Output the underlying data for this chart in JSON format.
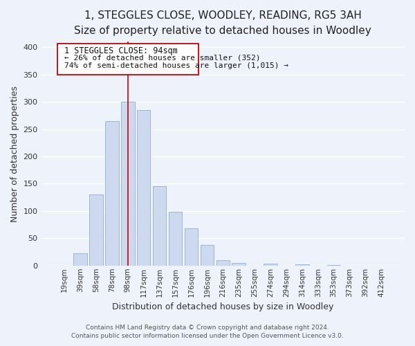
{
  "title": "1, STEGGLES CLOSE, WOODLEY, READING, RG5 3AH",
  "subtitle": "Size of property relative to detached houses in Woodley",
  "xlabel": "Distribution of detached houses by size in Woodley",
  "ylabel": "Number of detached properties",
  "bar_labels": [
    "19sqm",
    "39sqm",
    "58sqm",
    "78sqm",
    "98sqm",
    "117sqm",
    "137sqm",
    "157sqm",
    "176sqm",
    "196sqm",
    "216sqm",
    "235sqm",
    "255sqm",
    "274sqm",
    "294sqm",
    "314sqm",
    "333sqm",
    "353sqm",
    "373sqm",
    "392sqm",
    "412sqm"
  ],
  "bar_values": [
    0,
    22,
    130,
    265,
    300,
    285,
    145,
    99,
    68,
    38,
    10,
    5,
    0,
    3,
    0,
    2,
    0,
    1,
    0,
    0,
    0
  ],
  "bar_color": "#ccd9ee",
  "bar_edge_color": "#9db5d8",
  "highlight_bar_index": 4,
  "vline_color": "#cc0000",
  "ylim": [
    0,
    410
  ],
  "yticks": [
    0,
    50,
    100,
    150,
    200,
    250,
    300,
    350,
    400
  ],
  "annotation_title": "1 STEGGLES CLOSE: 94sqm",
  "annotation_line1": "← 26% of detached houses are smaller (352)",
  "annotation_line2": "74% of semi-detached houses are larger (1,015) →",
  "annotation_box_color": "#ffffff",
  "annotation_box_edge": "#cc0000",
  "footer1": "Contains HM Land Registry data © Crown copyright and database right 2024.",
  "footer2": "Contains public sector information licensed under the Open Government Licence v3.0.",
  "background_color": "#edf2fb",
  "grid_color": "#ffffff",
  "title_fontsize": 11,
  "subtitle_fontsize": 9.5,
  "axis_label_fontsize": 9,
  "tick_fontsize": 7.5,
  "annotation_title_fontsize": 8.5,
  "annotation_text_fontsize": 8,
  "footer_fontsize": 6.5
}
